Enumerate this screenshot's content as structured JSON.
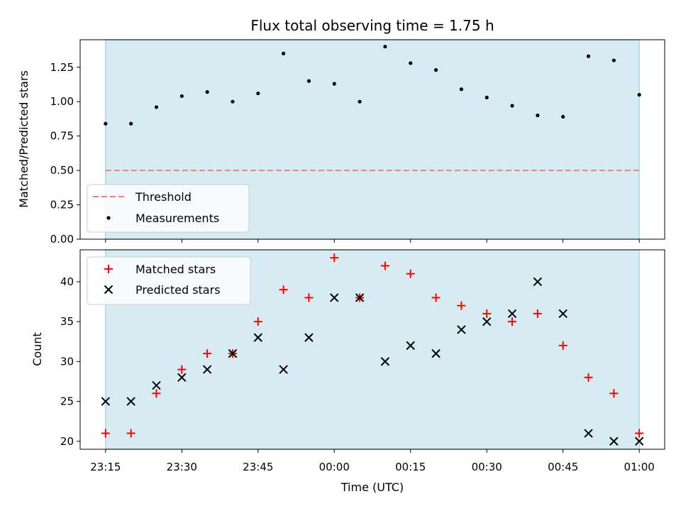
{
  "chart_data": {
    "type": "scatter",
    "title": "Flux total observing time = 1.75 h",
    "xlabel": "Time (UTC)",
    "x_tick_labels": [
      "23:15",
      "23:30",
      "23:45",
      "00:00",
      "00:15",
      "00:30",
      "00:45",
      "01:00"
    ],
    "x_tick_minutes": [
      0,
      15,
      30,
      45,
      60,
      75,
      90,
      105
    ],
    "x_minutes": [
      0,
      5,
      10,
      15,
      20,
      25,
      30,
      35,
      40,
      45,
      50,
      55,
      60,
      65,
      70,
      75,
      80,
      85,
      90,
      95,
      100,
      105
    ],
    "xlim_minutes": [
      -5,
      110
    ],
    "shaded_span_minutes": [
      0,
      105
    ],
    "shade_color": "#add8e6",
    "top_panel": {
      "ylabel": "Matched/Predicted stars",
      "ylim": [
        0,
        1.45
      ],
      "yticks": [
        0.0,
        0.25,
        0.5,
        0.75,
        1.0,
        1.25
      ],
      "ytick_labels": [
        "0.00",
        "0.25",
        "0.50",
        "0.75",
        "1.00",
        "1.25"
      ],
      "threshold": {
        "name": "Threshold",
        "value": 0.5,
        "color": "#f08080"
      },
      "measurements": {
        "name": "Measurements",
        "color": "#000000",
        "values": [
          0.84,
          0.84,
          0.96,
          1.04,
          1.07,
          1.0,
          1.06,
          1.35,
          1.15,
          1.13,
          1.0,
          1.4,
          1.28,
          1.23,
          1.09,
          1.03,
          0.97,
          0.9,
          0.89,
          1.33,
          1.3,
          1.05
        ]
      },
      "legend_position": "lower-left"
    },
    "bottom_panel": {
      "ylabel": "Count",
      "ylim": [
        19,
        44
      ],
      "yticks": [
        20,
        25,
        30,
        35,
        40
      ],
      "ytick_labels": [
        "20",
        "25",
        "30",
        "35",
        "40"
      ],
      "series": [
        {
          "name": "Matched stars",
          "marker": "plus",
          "color": "#ff0000",
          "values": [
            21,
            21,
            26,
            29,
            31,
            31,
            35,
            39,
            38,
            43,
            38,
            42,
            41,
            38,
            37,
            36,
            35,
            36,
            32,
            28,
            26,
            21
          ]
        },
        {
          "name": "Predicted stars",
          "marker": "x",
          "color": "#000000",
          "values": [
            25,
            25,
            27,
            28,
            29,
            31,
            33,
            29,
            33,
            38,
            38,
            30,
            32,
            31,
            34,
            35,
            36,
            40,
            36,
            21,
            20,
            20
          ]
        }
      ],
      "legend_position": "upper-left"
    }
  }
}
